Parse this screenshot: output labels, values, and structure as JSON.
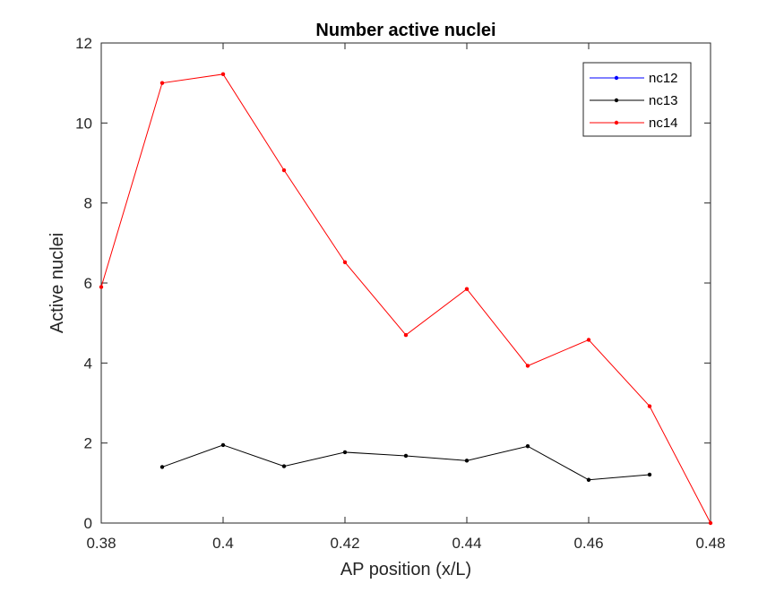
{
  "chart_data": {
    "type": "line",
    "title": "Number active nuclei",
    "xlabel": "AP position (x/L)",
    "ylabel": "Active nuclei",
    "xlim": [
      0.38,
      0.48
    ],
    "ylim": [
      0,
      12
    ],
    "xticks": [
      0.38,
      0.4,
      0.42,
      0.44,
      0.46,
      0.48
    ],
    "xtick_labels": [
      "0.38",
      "0.4",
      "0.42",
      "0.44",
      "0.46",
      "0.48"
    ],
    "yticks": [
      0,
      2,
      4,
      6,
      8,
      10,
      12
    ],
    "ytick_labels": [
      "0",
      "2",
      "4",
      "6",
      "8",
      "10",
      "12"
    ],
    "grid": false,
    "legend_position": "top-right",
    "series": [
      {
        "name": "nc12",
        "color": "#0000ff",
        "x": [],
        "y": []
      },
      {
        "name": "nc13",
        "color": "#000000",
        "x": [
          0.39,
          0.4,
          0.41,
          0.42,
          0.43,
          0.44,
          0.45,
          0.46,
          0.47
        ],
        "y": [
          1.4,
          1.95,
          1.42,
          1.77,
          1.68,
          1.56,
          1.92,
          1.08,
          1.21
        ]
      },
      {
        "name": "nc14",
        "color": "#ff0000",
        "x": [
          0.38,
          0.39,
          0.4,
          0.41,
          0.42,
          0.43,
          0.44,
          0.45,
          0.46,
          0.47,
          0.48
        ],
        "y": [
          5.9,
          11.0,
          11.22,
          8.82,
          6.52,
          4.7,
          5.85,
          3.93,
          4.58,
          2.92,
          0.0
        ]
      }
    ]
  }
}
